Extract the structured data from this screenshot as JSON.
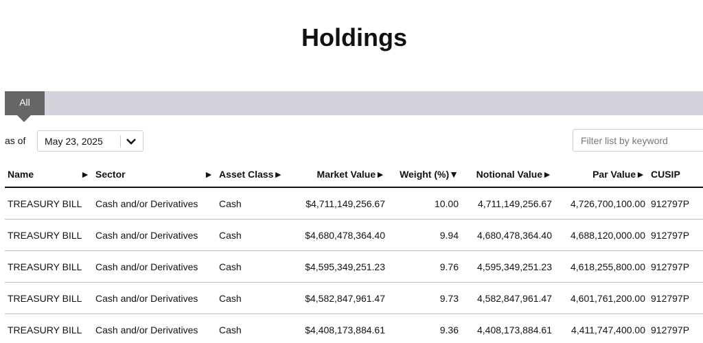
{
  "header": {
    "title": "Holdings"
  },
  "tabs": [
    {
      "label": "All"
    }
  ],
  "controls": {
    "as_of_label": "as of",
    "date": "May 23, 2025",
    "filter_placeholder": "Filter list by keyword"
  },
  "table": {
    "columns": [
      {
        "label": "Name",
        "sort": "►"
      },
      {
        "label": "Sector",
        "sort": "►"
      },
      {
        "label": "Asset Class",
        "sort": "►"
      },
      {
        "label": "Market Value",
        "sort": "►"
      },
      {
        "label": "Weight (%)",
        "sort": "▼"
      },
      {
        "label": "Notional Value",
        "sort": "►"
      },
      {
        "label": "Par Value",
        "sort": "►"
      },
      {
        "label": "CUSIP"
      }
    ],
    "rows": [
      [
        "TREASURY BILL",
        "Cash and/or Derivatives",
        "Cash",
        "$4,711,149,256.67",
        "10.00",
        "4,711,149,256.67",
        "4,726,700,100.00",
        "912797P"
      ],
      [
        "TREASURY BILL",
        "Cash and/or Derivatives",
        "Cash",
        "$4,680,478,364.40",
        "9.94",
        "4,680,478,364.40",
        "4,688,120,000.00",
        "912797P"
      ],
      [
        "TREASURY BILL",
        "Cash and/or Derivatives",
        "Cash",
        "$4,595,349,251.23",
        "9.76",
        "4,595,349,251.23",
        "4,618,255,800.00",
        "912797P"
      ],
      [
        "TREASURY BILL",
        "Cash and/or Derivatives",
        "Cash",
        "$4,582,847,961.47",
        "9.73",
        "4,582,847,961.47",
        "4,601,761,200.00",
        "912797P"
      ],
      [
        "TREASURY BILL",
        "Cash and/or Derivatives",
        "Cash",
        "$4,408,173,884.61",
        "9.36",
        "4,408,173,884.61",
        "4,411,747,400.00",
        "912797P"
      ]
    ]
  }
}
